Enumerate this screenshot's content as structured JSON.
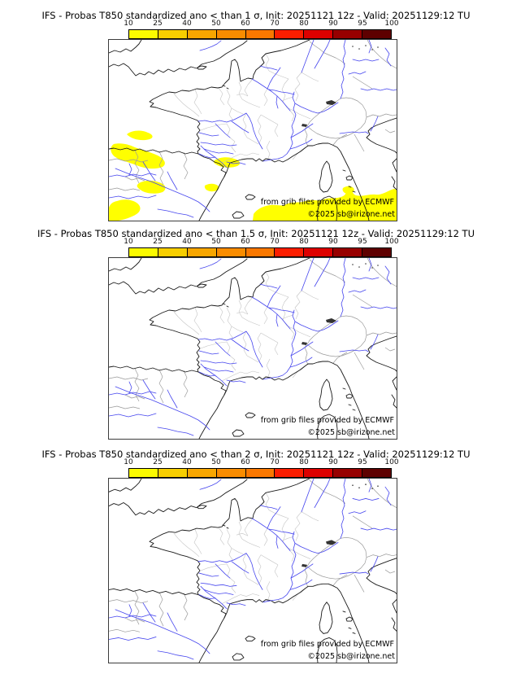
{
  "panels": [
    {
      "title": "IFS - Probas T850  standardized ano < than 1 σ, Init: 20251121 12z - Valid: 20251129:12 TU",
      "sigma_threshold": "1",
      "overlay_shading": true
    },
    {
      "title": "IFS - Probas T850  standardized ano < than 1.5 σ, Init: 20251121 12z - Valid: 20251129:12 TU",
      "sigma_threshold": "1.5",
      "overlay_shading": false
    },
    {
      "title": "IFS - Probas T850  standardized ano < than 2 σ, Init: 20251121 12z - Valid: 20251129:12 TU",
      "sigma_threshold": "2",
      "overlay_shading": false
    }
  ],
  "colorbar": {
    "tick_labels": [
      "10",
      "25",
      "40",
      "50",
      "60",
      "70",
      "80",
      "90",
      "95",
      "100"
    ],
    "segment_colors": [
      "#fbfb00",
      "#f7ce00",
      "#f7a600",
      "#f98c00",
      "#fa7800",
      "#fb1e00",
      "#dd0000",
      "#970000",
      "#5e0000"
    ]
  },
  "map": {
    "credit_line1": "from grib files provided by ECMWF",
    "credit_line2": "©2025 sb@irizone.net",
    "colors": {
      "shading": "#ffff00",
      "rivers": "#4646ee",
      "department_boundaries": "#c4c4c4",
      "country_borders": "#9a9a9a",
      "coastlines": "#1a1a1a"
    }
  }
}
